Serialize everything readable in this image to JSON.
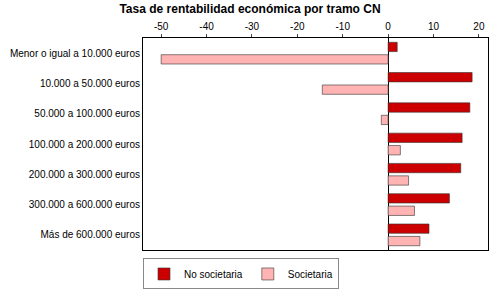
{
  "chart_data": {
    "type": "bar",
    "orientation": "horizontal",
    "title": "Tasa de rentabilidad económica por tramo CN",
    "categories": [
      "Menor o igual a 10.000 euros",
      "10.000 a 50.000 euros",
      "50.000 a 100.000 euros",
      "100.000 a 200.000 euros",
      "200.000 a 300.000 euros",
      "300.000 a 600.000 euros",
      "Más de 600.000 euros"
    ],
    "series": [
      {
        "name": "No societaria",
        "color": "#cc0000",
        "values": [
          2,
          18.5,
          18,
          16.3,
          16,
          13.5,
          9
        ]
      },
      {
        "name": "Societaria",
        "color": "#ffb3b3",
        "values": [
          -50,
          -14.5,
          -1.5,
          2.7,
          4.5,
          5.8,
          7
        ]
      }
    ],
    "xlim": [
      -54,
      22
    ],
    "xticks": [
      -50,
      -40,
      -30,
      -20,
      -10,
      0,
      10,
      20
    ],
    "grid": false,
    "legend": "bottom"
  }
}
